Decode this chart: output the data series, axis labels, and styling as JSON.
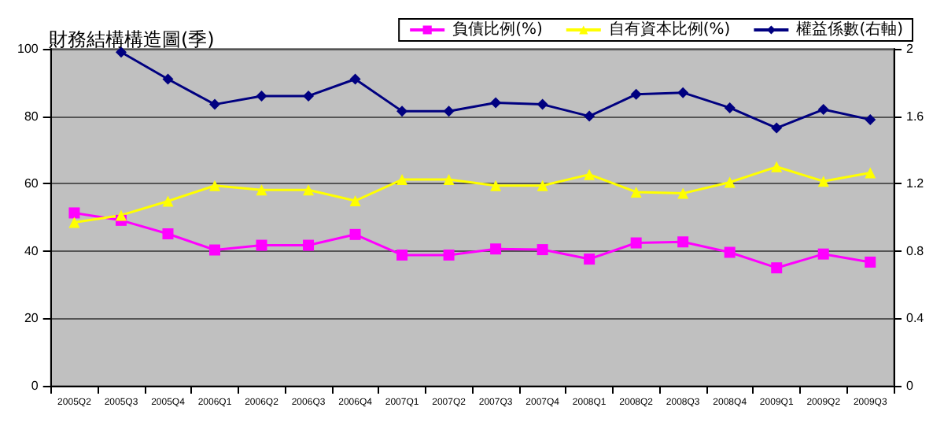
{
  "chart_data": {
    "type": "line",
    "title": "財務結構構造圖(季)",
    "categories": [
      "2005Q2",
      "2005Q3",
      "2005Q4",
      "2006Q1",
      "2006Q2",
      "2006Q3",
      "2006Q4",
      "2007Q1",
      "2007Q2",
      "2007Q3",
      "2007Q4",
      "2008Q1",
      "2008Q2",
      "2008Q3",
      "2008Q4",
      "2009Q1",
      "2009Q2",
      "2009Q3"
    ],
    "series": [
      {
        "name": "負債比例(%)",
        "color": "#ff00ff",
        "marker": "square",
        "values": [
          51.3,
          49.1,
          45.1,
          40.3,
          41.7,
          41.7,
          44.9,
          38.8,
          38.8,
          40.6,
          40.4,
          37.6,
          42.4,
          42.7,
          39.6,
          35,
          39.1,
          36.7
        ]
      },
      {
        "name": "自有資本比例(%)",
        "color": "#ffff00",
        "marker": "triangle",
        "values": [
          48.5,
          50.6,
          54.8,
          59.4,
          58.1,
          58.1,
          54.9,
          61.2,
          61.2,
          59.4,
          59.4,
          62.7,
          57.5,
          57.1,
          60.4,
          65,
          60.7,
          63.2
        ]
      },
      {
        "name": "權益係數(右軸)",
        "color": "#000080",
        "marker": "diamond",
        "axis": "y2",
        "values": [
          null,
          1.98,
          1.82,
          1.67,
          1.72,
          1.72,
          1.82,
          1.63,
          1.63,
          1.68,
          1.67,
          1.6,
          1.73,
          1.74,
          1.65,
          1.53,
          1.64,
          1.58
        ]
      }
    ],
    "ylim": [
      0,
      100
    ],
    "yticks": [
      0,
      20,
      40,
      60,
      80,
      100
    ],
    "y2lim": [
      0,
      2
    ],
    "y2ticks": [
      0,
      0.4,
      0.8,
      1.2,
      1.6,
      2
    ],
    "grid": "y",
    "legend": "top right"
  }
}
